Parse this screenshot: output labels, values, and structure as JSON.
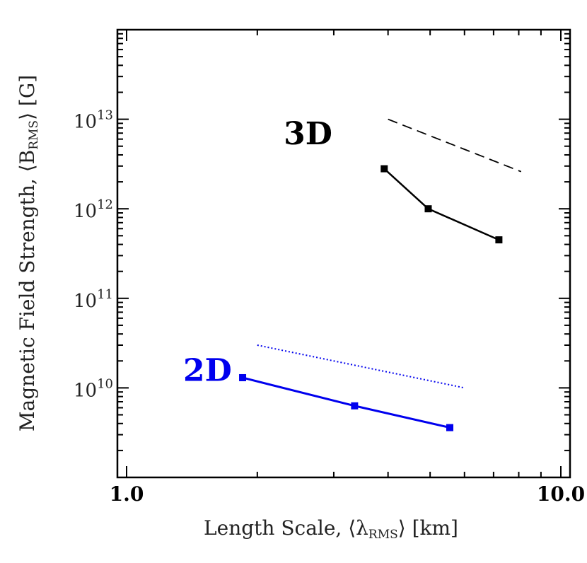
{
  "chart_data": {
    "type": "line",
    "xscale": "log",
    "yscale": "log",
    "xlim": [
      1.0,
      10.0
    ],
    "ylim": [
      1000000000.0,
      100000000000000.0
    ],
    "xlabel_main": "Length Scale, ⟨λ",
    "xlabel_sub": "RMS",
    "xlabel_tail": "⟩ [km]",
    "ylabel_main": "Magnetic Field Strength, ⟨B",
    "ylabel_sub": "RMS",
    "ylabel_tail": "⟩ [G]",
    "x_ticks": [
      {
        "value": 1.0,
        "label": "1.0"
      },
      {
        "value": 10.0,
        "label": "10.0"
      }
    ],
    "y_ticks": [
      {
        "value": 10000000000.0,
        "base": "10",
        "exp": "10"
      },
      {
        "value": 100000000000.0,
        "base": "10",
        "exp": "11"
      },
      {
        "value": 1000000000000.0,
        "base": "10",
        "exp": "12"
      },
      {
        "value": 10000000000000.0,
        "base": "10",
        "exp": "13"
      }
    ],
    "series": [
      {
        "name": "3D",
        "label": "3D",
        "color": "#000000",
        "label_at": {
          "x": 2.3,
          "y": 7000000000000.0
        },
        "points": [
          {
            "x": 3.92,
            "y": 2800000000000.0
          },
          {
            "x": 4.95,
            "y": 1000000000000.0
          },
          {
            "x": 7.2,
            "y": 450000000000.0
          }
        ],
        "fit": {
          "style": "dashed",
          "from": {
            "x": 4.0,
            "y": 10000000000000.0
          },
          "to": {
            "x": 8.1,
            "y": 2600000000000.0
          }
        }
      },
      {
        "name": "2D",
        "label": "2D",
        "color": "#0000ee",
        "label_at": {
          "x": 1.35,
          "y": 16000000000.0
        },
        "points": [
          {
            "x": 1.85,
            "y": 13000000000.0
          },
          {
            "x": 3.35,
            "y": 6300000000.0
          },
          {
            "x": 5.55,
            "y": 3600000000.0
          }
        ],
        "fit": {
          "style": "dotted",
          "from": {
            "x": 2.0,
            "y": 30000000000.0
          },
          "to": {
            "x": 6.0,
            "y": 10000000000.0
          }
        }
      }
    ]
  }
}
